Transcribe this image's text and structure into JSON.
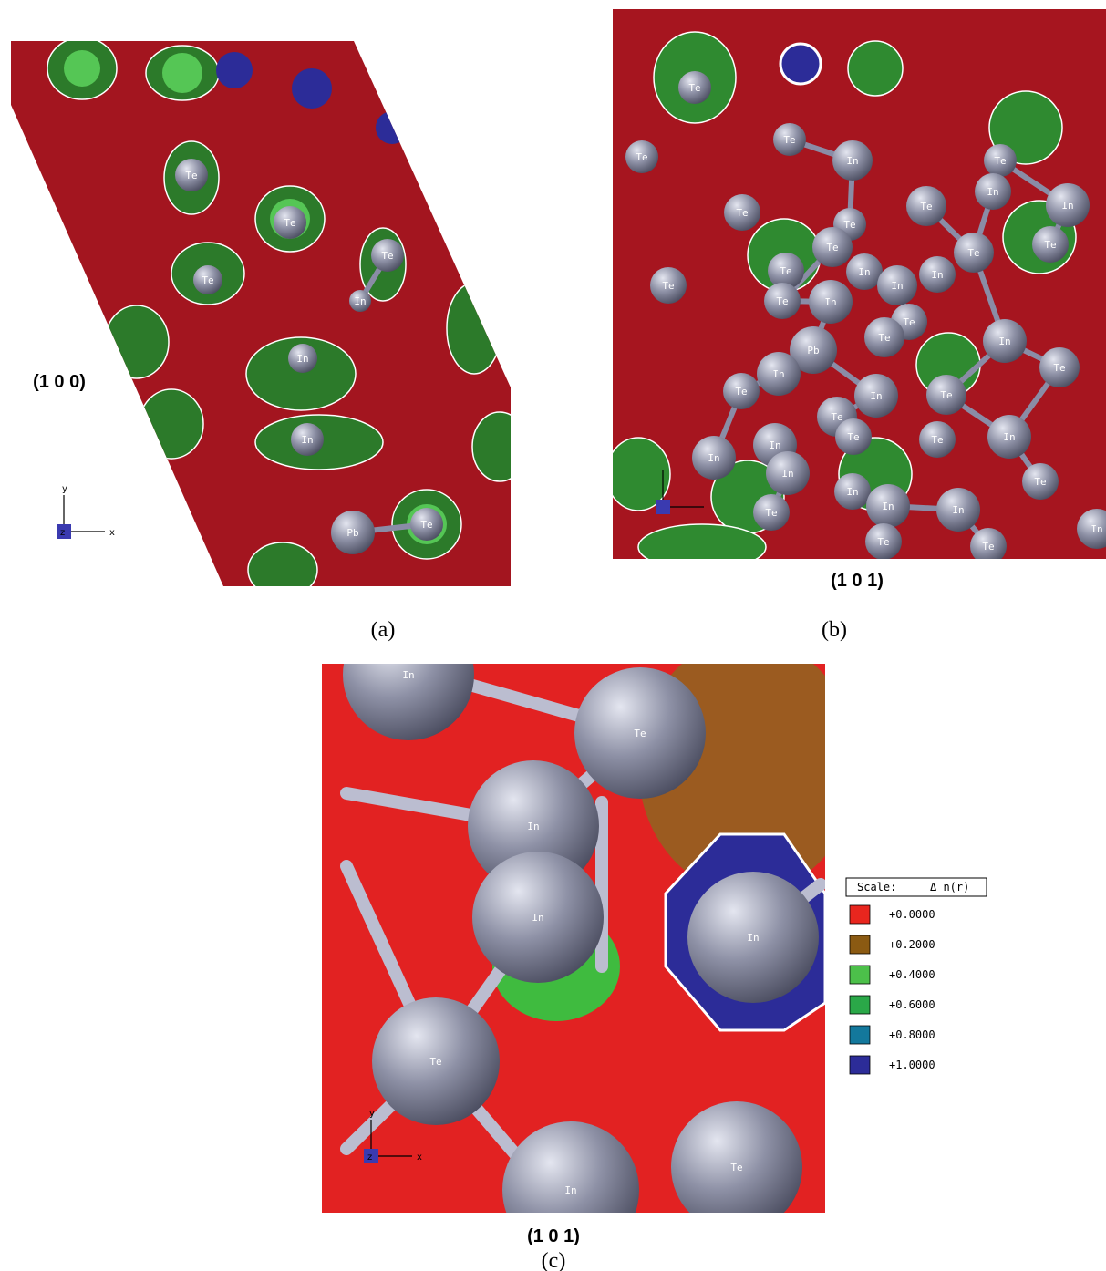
{
  "panels": [
    {
      "caption": "(a)",
      "plane": "(1 0 0)",
      "axes": [
        "y",
        "x",
        "z"
      ],
      "atoms": [
        "Te",
        "Te",
        "Te",
        "Te",
        "In",
        "In",
        "In",
        "Pb",
        "Te"
      ]
    },
    {
      "caption": "(b)",
      "plane": "(1 0 1)",
      "atoms": [
        "Te",
        "Te",
        "Te",
        "In",
        "Te",
        "In",
        "In",
        "Te",
        "Te",
        "Te",
        "Te",
        "Te",
        "Te",
        "In",
        "In",
        "In",
        "Te",
        "In",
        "Te",
        "Pb",
        "Te",
        "In",
        "Te",
        "In",
        "In",
        "Te",
        "Te",
        "Te",
        "Te",
        "In",
        "In",
        "Te",
        "In",
        "In",
        "Te",
        "In",
        "In",
        "In",
        "Te",
        "Te",
        "Te",
        "Te",
        "Te",
        "In"
      ]
    },
    {
      "caption": "(c)",
      "plane": "(1 0 1)",
      "axes": [
        "y",
        "x",
        "z"
      ],
      "atoms": [
        "In",
        "Te",
        "In",
        "In",
        "In",
        "Te",
        "In",
        "Te"
      ]
    }
  ],
  "legend": {
    "title": "Scale:",
    "symbol": "Δ n(r)",
    "items": [
      {
        "label": "+0.0000",
        "color": "#e8261e"
      },
      {
        "label": "+0.2000",
        "color": "#8b5a12"
      },
      {
        "label": "+0.4000",
        "color": "#4cc04a"
      },
      {
        "label": "+0.6000",
        "color": "#2aa848"
      },
      {
        "label": "+0.8000",
        "color": "#13789c"
      },
      {
        "label": "+1.0000",
        "color": "#2c2c98"
      }
    ]
  }
}
